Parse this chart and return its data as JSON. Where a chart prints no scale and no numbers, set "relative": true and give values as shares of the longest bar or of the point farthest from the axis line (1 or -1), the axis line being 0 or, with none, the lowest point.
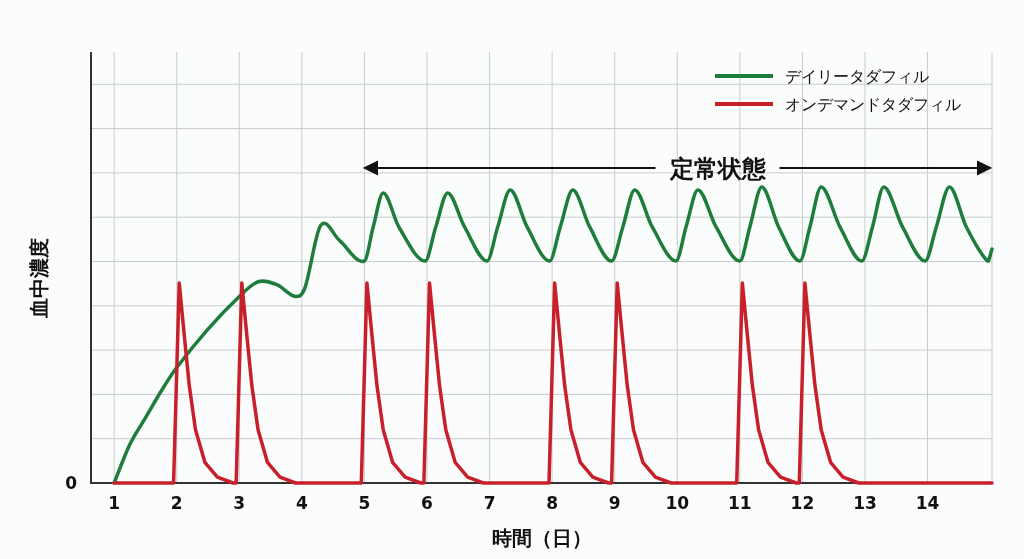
{
  "chart_data": {
    "type": "line",
    "relative": true,
    "xlabel": "時間（日）",
    "ylabel": "血中濃度",
    "xlim": [
      0.63,
      15.03
    ],
    "xticks": [
      1,
      2,
      3,
      4,
      5,
      6,
      7,
      8,
      9,
      10,
      11,
      12,
      13,
      14
    ],
    "grid": true,
    "legend": "top right",
    "annotations": [
      "0",
      "定常状態"
    ],
    "series": [
      {
        "name": "デイリータダフィル",
        "color": "#1e7d3c",
        "x": [
          1,
          1.25,
          1.5,
          1.75,
          2,
          2.5,
          3,
          3.3,
          3.6,
          3.9,
          4.05,
          4.3,
          4.6,
          5.0,
          5.14,
          5.3,
          5.55,
          5.97,
          6.14,
          6.33,
          6.6,
          6.96,
          7.13,
          7.33,
          7.6,
          7.96,
          8.13,
          8.33,
          8.6,
          8.95,
          9.13,
          9.32,
          9.6,
          9.98,
          10.14,
          10.33,
          10.62,
          11.0,
          11.16,
          11.35,
          11.62,
          11.96,
          12.12,
          12.3,
          12.6,
          12.95,
          13.12,
          13.3,
          13.6,
          13.96,
          14.14,
          14.35,
          14.62,
          14.96,
          15.03
        ],
        "values": [
          0,
          0.13,
          0.22,
          0.31,
          0.39,
          0.52,
          0.63,
          0.68,
          0.67,
          0.63,
          0.66,
          0.87,
          0.82,
          0.75,
          0.865,
          0.98,
          0.865,
          0.75,
          0.865,
          0.98,
          0.865,
          0.75,
          0.865,
          0.99,
          0.865,
          0.75,
          0.865,
          0.99,
          0.865,
          0.75,
          0.865,
          0.99,
          0.865,
          0.75,
          0.865,
          0.99,
          0.865,
          0.75,
          0.865,
          1.0,
          0.865,
          0.75,
          0.865,
          1.0,
          0.865,
          0.75,
          0.865,
          1.0,
          0.865,
          0.75,
          0.865,
          1.0,
          0.865,
          0.75,
          0.79
        ]
      },
      {
        "name": "オンデマンドタダフィル",
        "color": "#c8202a",
        "x": [
          1,
          1.95,
          2.04,
          2.12,
          2.2,
          2.3,
          2.45,
          2.65,
          2.9,
          2.95,
          3.04,
          3.12,
          3.2,
          3.3,
          3.45,
          3.65,
          3.9,
          4.95,
          5.04,
          5.12,
          5.2,
          5.3,
          5.45,
          5.65,
          5.9,
          5.95,
          6.04,
          6.12,
          6.2,
          6.3,
          6.45,
          6.65,
          6.9,
          7.95,
          8.04,
          8.12,
          8.2,
          8.3,
          8.45,
          8.65,
          8.9,
          8.95,
          9.04,
          9.12,
          9.2,
          9.3,
          9.45,
          9.65,
          9.9,
          10.95,
          11.04,
          11.12,
          11.2,
          11.3,
          11.45,
          11.65,
          11.9,
          11.95,
          12.04,
          12.12,
          12.2,
          12.3,
          12.45,
          12.65,
          12.9,
          15.03
        ],
        "values": [
          0,
          0,
          0.676,
          0.5,
          0.33,
          0.18,
          0.07,
          0.02,
          0,
          0,
          0.676,
          0.5,
          0.33,
          0.18,
          0.07,
          0.02,
          0,
          0,
          0.676,
          0.5,
          0.33,
          0.18,
          0.07,
          0.02,
          0,
          0,
          0.676,
          0.5,
          0.33,
          0.18,
          0.07,
          0.02,
          0,
          0,
          0.676,
          0.5,
          0.33,
          0.18,
          0.07,
          0.02,
          0,
          0,
          0.676,
          0.5,
          0.33,
          0.18,
          0.07,
          0.02,
          0,
          0,
          0.676,
          0.5,
          0.33,
          0.18,
          0.07,
          0.02,
          0,
          0,
          0.676,
          0.5,
          0.33,
          0.18,
          0.07,
          0.02,
          0,
          0
        ]
      }
    ]
  }
}
